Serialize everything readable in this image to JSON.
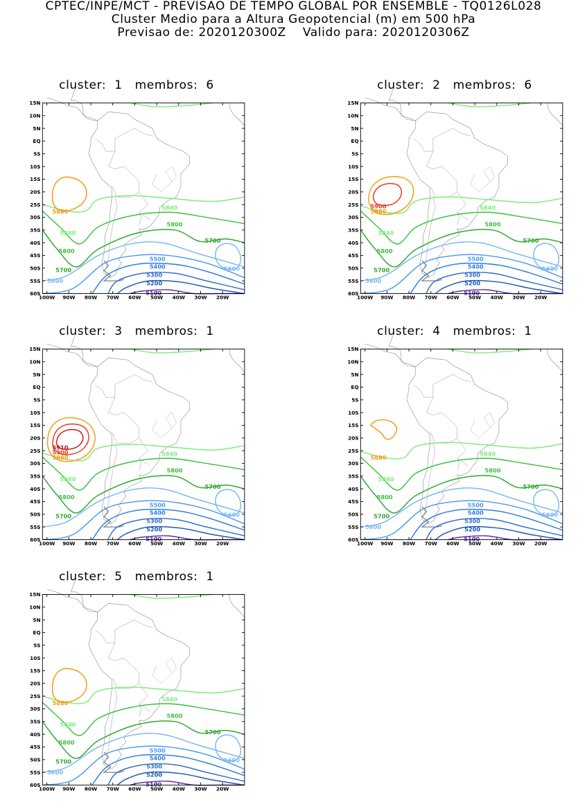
{
  "header": {
    "line1": "CPTEC/INPE/MCT - PREVISAO DE TEMPO GLOBAL POR ENSEMBLE - TQ0126L028",
    "line2": "Cluster Medio para a Altura Geopotencial (m) em 500 hPa",
    "line3": "Previsao de: 2020120300Z    Valido para: 2020120306Z"
  },
  "axes": {
    "lat_ticks": [
      "15N",
      "10N",
      "5N",
      "EQ",
      "5S",
      "10S",
      "15S",
      "20S",
      "25S",
      "30S",
      "35S",
      "40S",
      "45S",
      "50S",
      "55S",
      "60S"
    ],
    "lon_ticks": [
      "100W",
      "90W",
      "80W",
      "70W",
      "60W",
      "50W",
      "40W",
      "30W",
      "20W"
    ]
  },
  "colors": {
    "c5100": "#5a2fae",
    "c5200": "#1f57b8",
    "c5300": "#2f6fd0",
    "c5400": "#2a7ee0",
    "c5500": "#4a9aee",
    "c5600": "#7ab8f2",
    "c5700": "#2da82d",
    "c5800": "#3cc23c",
    "c5840": "#7cee7c",
    "c5880": "#f59a10",
    "c5900": "#e83a1a",
    "c5910": "#c81414",
    "coast": "#808080"
  },
  "panels": [
    {
      "cluster_label": "cluster:",
      "cluster_number": "1",
      "members_label": "membros:",
      "members_number": "6",
      "labels": [
        "5880",
        "5840",
        "5840",
        "5800",
        "5800",
        "5700",
        "5700",
        "5600",
        "5600",
        "5500",
        "5400",
        "5300",
        "5200",
        "5100"
      ]
    },
    {
      "cluster_label": "cluster:",
      "cluster_number": "2",
      "members_label": "membros:",
      "members_number": "6",
      "labels": [
        "5900",
        "5880",
        "5840",
        "5840",
        "5800",
        "5800",
        "5700",
        "5700",
        "5600",
        "5600",
        "5500",
        "5400",
        "5300",
        "5200",
        "5100"
      ]
    },
    {
      "cluster_label": "cluster:",
      "cluster_number": "3",
      "members_label": "membros:",
      "members_number": "1",
      "labels": [
        "5910",
        "5900",
        "5880",
        "5840",
        "5840",
        "5800",
        "5800",
        "5700",
        "5700",
        "5600",
        "5500",
        "5400",
        "5300",
        "5200",
        "5100"
      ]
    },
    {
      "cluster_label": "cluster:",
      "cluster_number": "4",
      "members_label": "membros:",
      "members_number": "1",
      "labels": [
        "5880",
        "5840",
        "5840",
        "5800",
        "5800",
        "5700",
        "5700",
        "5600",
        "5600",
        "5500",
        "5400",
        "5300",
        "5200",
        "5100"
      ]
    },
    {
      "cluster_label": "cluster:",
      "cluster_number": "5",
      "members_label": "membros:",
      "members_number": "1",
      "labels": [
        "5880",
        "5840",
        "5840",
        "5800",
        "5800",
        "5700",
        "5700",
        "5600",
        "5600",
        "5500",
        "5400",
        "5300",
        "5200",
        "5100"
      ]
    }
  ]
}
